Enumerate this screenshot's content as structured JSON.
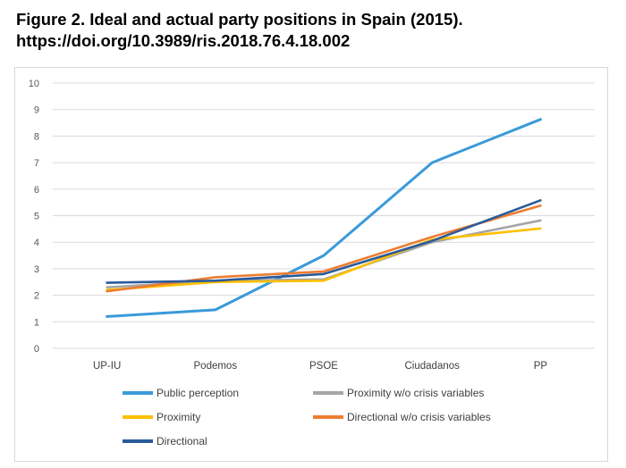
{
  "figure": {
    "title_line1": "Figure 2. Ideal and actual party positions in Spain (2015).",
    "title_line2": "https://doi.org/10.3989/ris.2018.76.4.18.002"
  },
  "chart_data": {
    "type": "line",
    "title": "",
    "xlabel": "",
    "ylabel": "",
    "categories": [
      "UP-IU",
      "Podemos",
      "PSOE",
      "Ciudadanos",
      "PP"
    ],
    "ylim": [
      0,
      10
    ],
    "yticks": [
      0,
      1,
      2,
      3,
      4,
      5,
      6,
      7,
      8,
      9,
      10
    ],
    "grid": true,
    "legend_position": "bottom",
    "series": [
      {
        "name": "Public perception",
        "color": "#3a9ad9",
        "values": [
          1.2,
          1.45,
          3.5,
          7.0,
          8.63
        ]
      },
      {
        "name": "Proximity w/o crisis variables",
        "color": "#a5a5a5",
        "values": [
          2.3,
          2.55,
          2.6,
          4.0,
          4.82
        ]
      },
      {
        "name": "Proximity",
        "color": "#ffc000",
        "values": [
          2.2,
          2.5,
          2.55,
          4.1,
          4.52
        ]
      },
      {
        "name": "Directional w/o crisis variables",
        "color": "#ed7d31",
        "values": [
          2.15,
          2.68,
          2.9,
          4.2,
          5.38
        ]
      },
      {
        "name": "Directional",
        "color": "#2a5b9a",
        "values": [
          2.47,
          2.55,
          2.8,
          4.05,
          5.58
        ]
      }
    ]
  }
}
